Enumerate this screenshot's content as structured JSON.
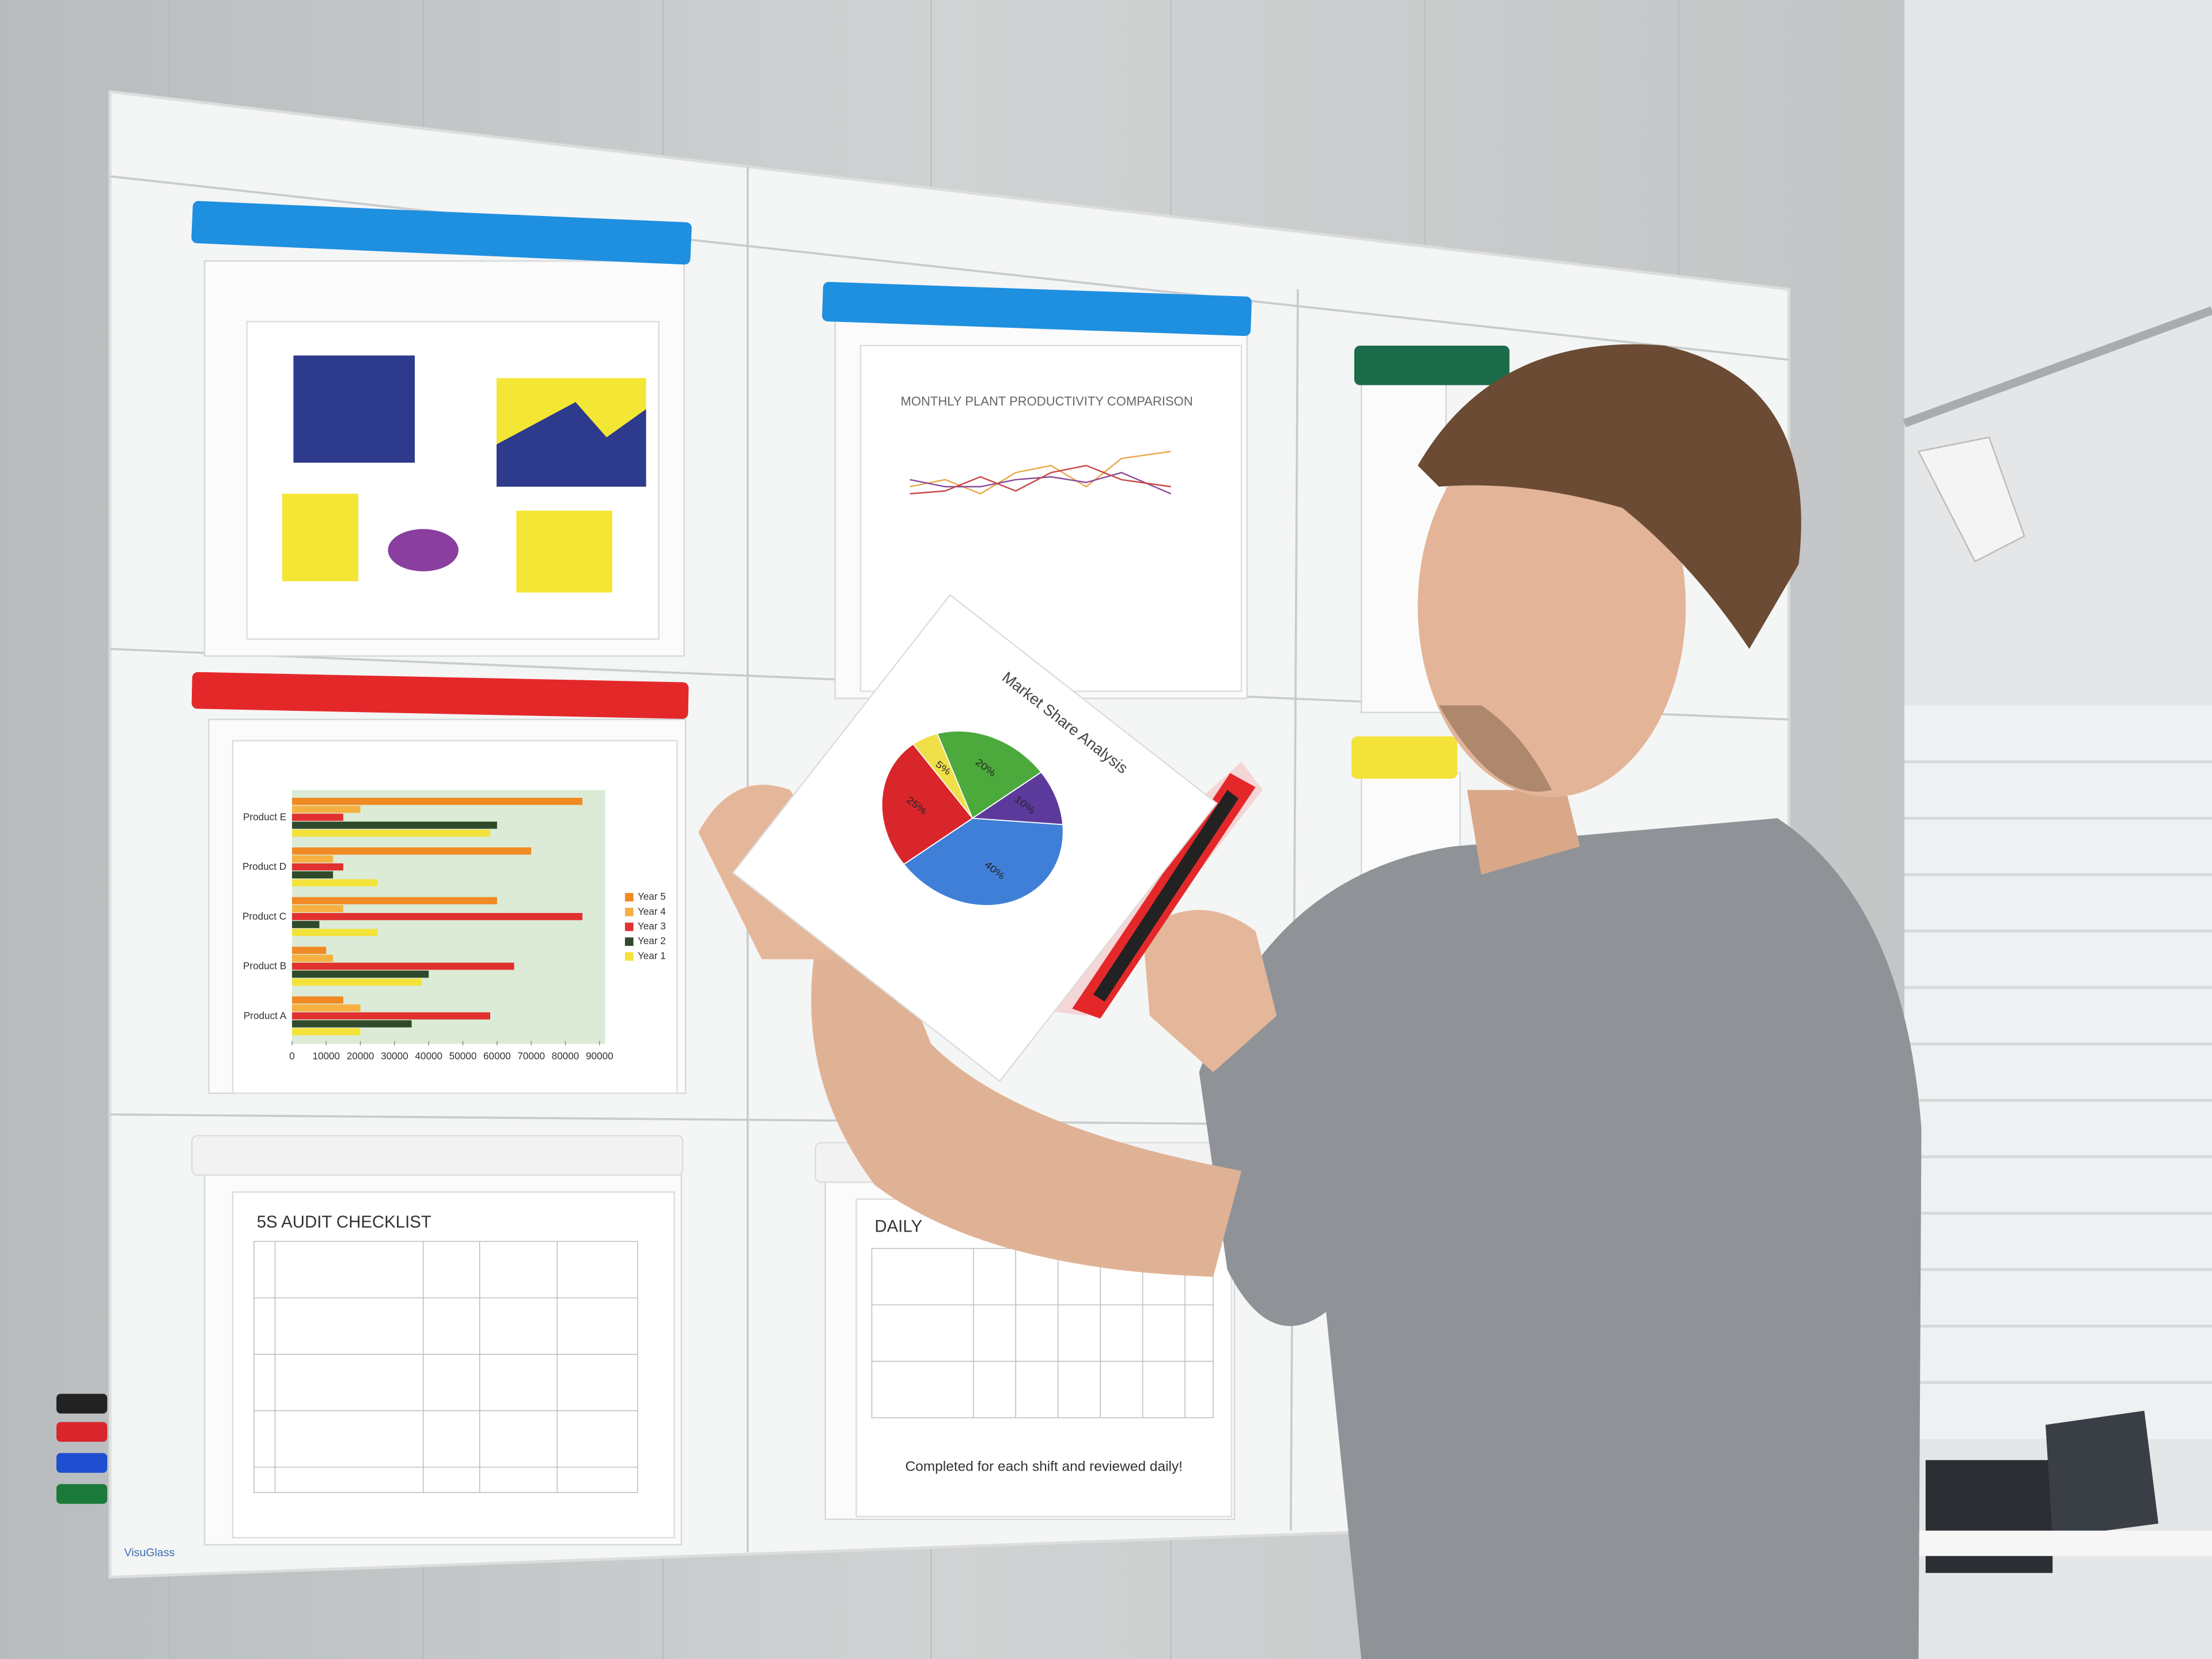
{
  "board": {
    "brand": "VisuGlass"
  },
  "pockets": {
    "productivity_title": "MONTHLY PLANT PRODUCTIVITY COMPARISON",
    "audit_title": "5S AUDIT CHECKLIST",
    "daily_title": "DAILY",
    "daily_note": "Completed for each shift and reviewed daily!"
  },
  "bar_chart": {
    "type": "bar",
    "categories": [
      "Product A",
      "Product B",
      "Product C",
      "Product D",
      "Product E"
    ],
    "series": [
      {
        "name": "Year 5",
        "color": "#f08a24",
        "values": [
          15000,
          10000,
          60000,
          70000,
          85000
        ]
      },
      {
        "name": "Year 4",
        "color": "#f5b041",
        "values": [
          20000,
          12000,
          15000,
          12000,
          20000
        ]
      },
      {
        "name": "Year 3",
        "color": "#e0312f",
        "values": [
          58000,
          65000,
          85000,
          15000,
          15000
        ]
      },
      {
        "name": "Year 2",
        "color": "#2f4a2a",
        "values": [
          35000,
          40000,
          8000,
          12000,
          60000
        ]
      },
      {
        "name": "Year 1",
        "color": "#f3e23a",
        "values": [
          20000,
          38000,
          25000,
          25000,
          58000
        ]
      }
    ],
    "xlim": [
      0,
      90000
    ],
    "xticks": [
      0,
      10000,
      20000,
      30000,
      40000,
      50000,
      60000,
      70000,
      80000,
      90000
    ]
  },
  "pie_chart": {
    "type": "pie",
    "title": "Market Share Analysis",
    "values": [
      40,
      25,
      5,
      20,
      10
    ],
    "value_labels": [
      "40%",
      "25%",
      "5%",
      "20%",
      "10%"
    ],
    "colors": [
      "#3f7fd8",
      "#d8262b",
      "#efe04a",
      "#4caa3c",
      "#5b3a9c"
    ]
  }
}
